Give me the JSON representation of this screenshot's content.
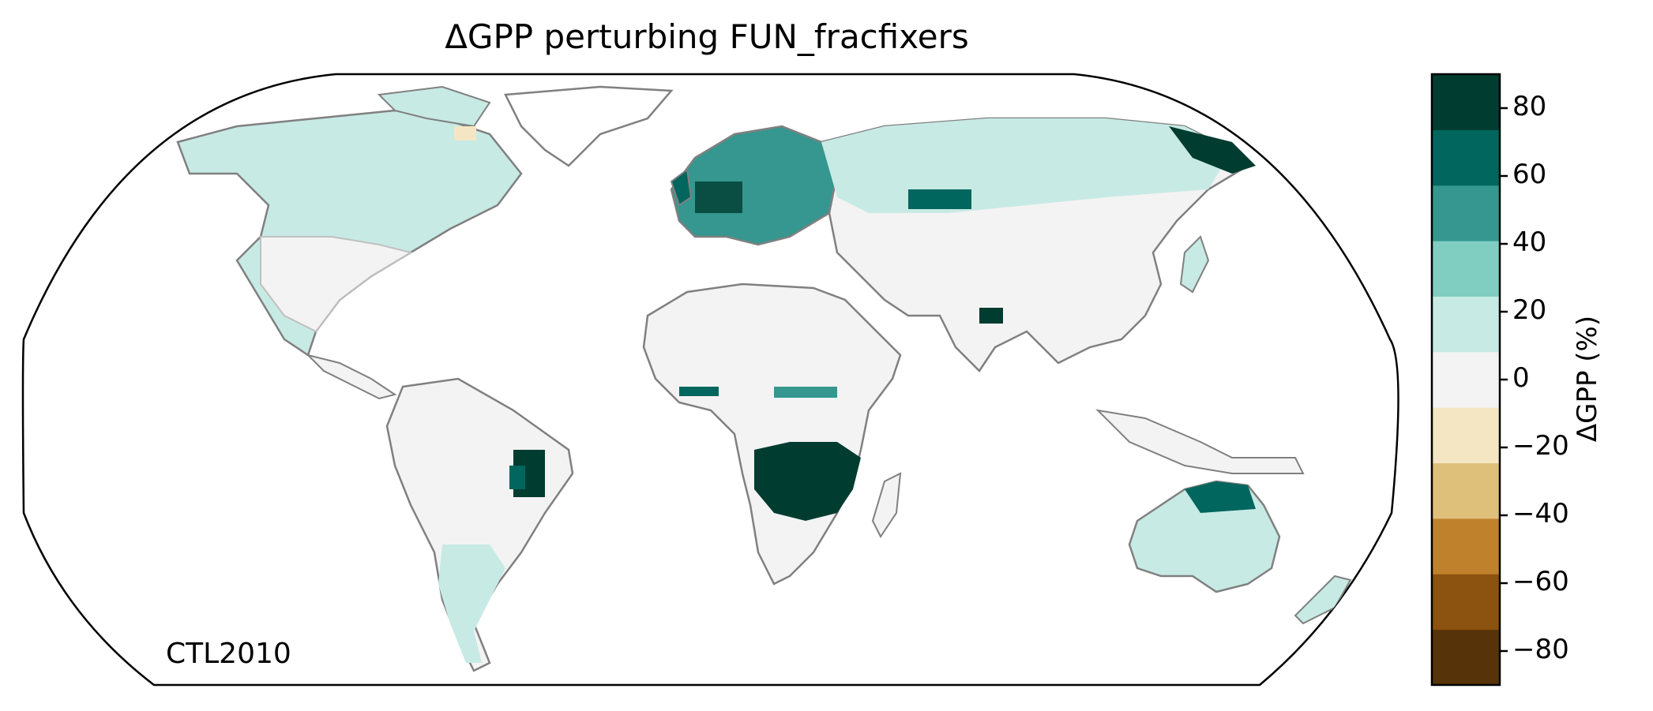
{
  "title": "ΔGPP perturbing FUN_fracfixers",
  "corner_label": "CTL2010",
  "colorbar": {
    "label": "ΔGPP (%)",
    "ticks": [
      "−80",
      "−60",
      "−40",
      "−20",
      "0",
      "20",
      "40",
      "60",
      "80"
    ],
    "tick_values": [
      -80,
      -60,
      -40,
      -20,
      0,
      20,
      40,
      60,
      80
    ],
    "range": [
      -90,
      90
    ],
    "colors": [
      "#573309",
      "#8c520f",
      "#bf812c",
      "#dec07a",
      "#f5e6c3",
      "#f3f3f3",
      "#c7eae4",
      "#80cdc1",
      "#35978f",
      "#01665e",
      "#003c30"
    ]
  },
  "map": {
    "projection": "Robinson",
    "land_color": "#f3f3f3",
    "coast_color": "#808080",
    "border_color": "#c0c0c0",
    "regions": [
      {
        "name": "Boreal North America",
        "level": 20
      },
      {
        "name": "Eastern North America",
        "level": 20
      },
      {
        "name": "Central Europe",
        "level": 60
      },
      {
        "name": "Northern Eurasia",
        "level": 20
      },
      {
        "name": "Eastern Siberia",
        "level": 80
      },
      {
        "name": "Eastern Brazil",
        "level": 80
      },
      {
        "name": "Southern Africa (Miombo)",
        "level": 80
      },
      {
        "name": "Northern Australia",
        "level": 60
      },
      {
        "name": "Southern South America",
        "level": 20
      },
      {
        "name": "Canadian Arctic",
        "level": -20
      }
    ]
  }
}
